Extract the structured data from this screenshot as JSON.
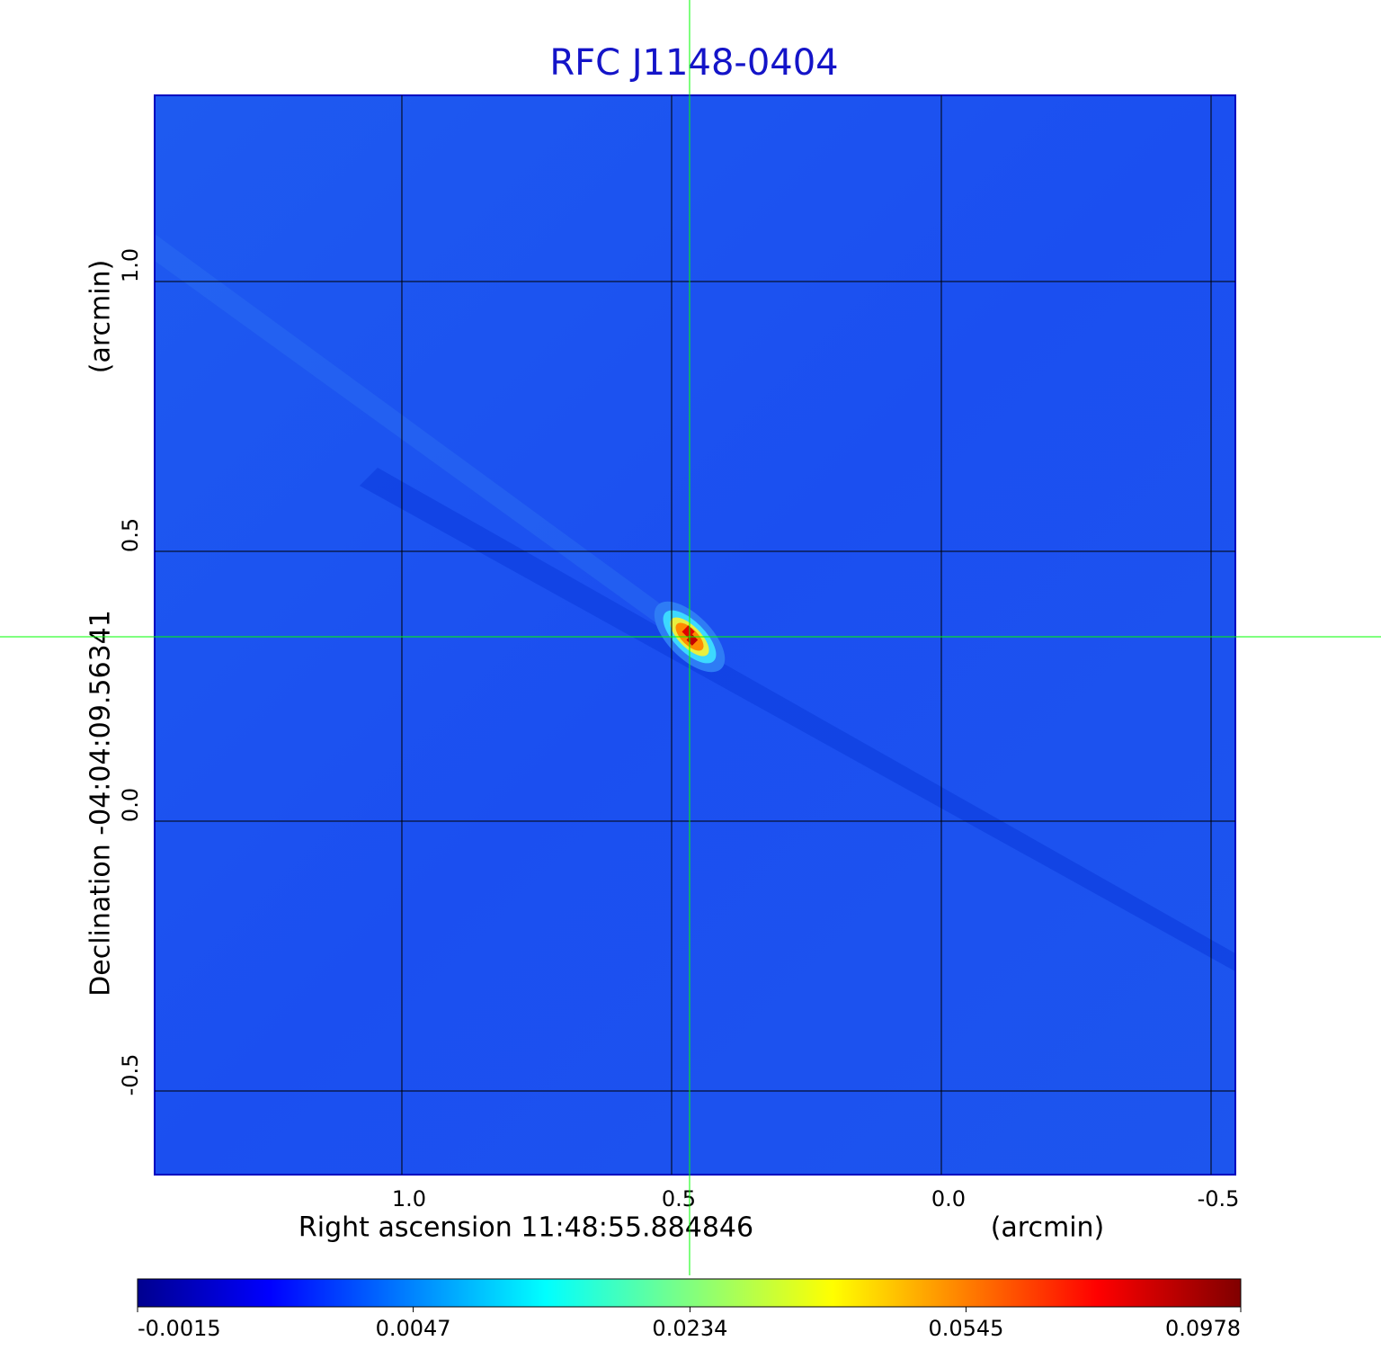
{
  "chart_data": {
    "type": "image",
    "title": "RFC J1148-0404",
    "x_label": "Right ascension  11:48:55.884846",
    "x_unit": "(arcmin)",
    "y_label": "Declination  -04:04:09.56341",
    "y_unit": "(arcmin)",
    "xlim": [
      1.4583,
      -0.545
    ],
    "ylim": [
      -0.655,
      1.345
    ],
    "xticks": [
      {
        "value": 1,
        "label": "1.0"
      },
      0.5,
      {
        "value": 0,
        "label": "0.0"
      },
      -0.5
    ],
    "yticks": [
      {
        "value": 1,
        "label": "1.0"
      },
      0.5,
      {
        "value": 0,
        "label": "0.0"
      },
      -0.5
    ],
    "grid": true,
    "crosshair": {
      "x": 0.4667,
      "y": 0.3417,
      "color": "#00ff00"
    },
    "colorbar": {
      "scale": "sqrt",
      "ticks": [
        -0.0015,
        0.0047,
        0.0234,
        0.0545,
        0.0978
      ]
    }
  }
}
